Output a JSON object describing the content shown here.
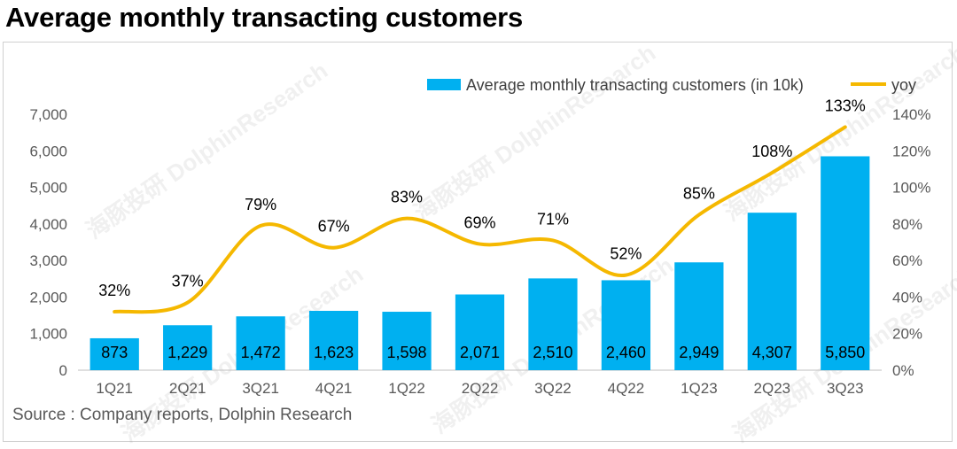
{
  "title": "Average monthly transacting customers",
  "source": "Source : Company reports, Dolphin Research",
  "watermark": {
    "logo_cn": "海豚投研",
    "logo_en": "DolphinResearch"
  },
  "colors": {
    "bar": "#00B0F0",
    "line": "#F5B800",
    "axis_text": "#595959",
    "bar_label": "#000000"
  },
  "chart_data": {
    "type": "bar",
    "categories": [
      "1Q21",
      "2Q21",
      "3Q21",
      "4Q21",
      "1Q22",
      "2Q22",
      "3Q22",
      "4Q22",
      "1Q23",
      "2Q23",
      "3Q23"
    ],
    "series": [
      {
        "name": "Average monthly transacting customers (in 10k)",
        "type": "bar",
        "axis": "left",
        "values": [
          873,
          1229,
          1472,
          1623,
          1598,
          2071,
          2510,
          2460,
          2949,
          4307,
          5850
        ],
        "labels": [
          "873",
          "1,229",
          "1,472",
          "1,623",
          "1,598",
          "2,071",
          "2,510",
          "2,460",
          "2,949",
          "4,307",
          "5,850"
        ]
      },
      {
        "name": "yoy",
        "type": "line",
        "axis": "right",
        "values": [
          32,
          37,
          79,
          67,
          83,
          69,
          71,
          52,
          85,
          108,
          133
        ],
        "labels": [
          "32%",
          "37%",
          "79%",
          "67%",
          "83%",
          "69%",
          "71%",
          "52%",
          "85%",
          "108%",
          "133%"
        ]
      }
    ],
    "y_left": {
      "min": 0,
      "max": 7000,
      "ticks": [
        "0",
        "1,000",
        "2,000",
        "3,000",
        "4,000",
        "5,000",
        "6,000",
        "7,000"
      ]
    },
    "y_right": {
      "min": 0,
      "max": 140,
      "ticks": [
        "0%",
        "20%",
        "40%",
        "60%",
        "80%",
        "100%",
        "120%",
        "140%"
      ]
    },
    "legend_position": "top-right",
    "grid": false
  }
}
